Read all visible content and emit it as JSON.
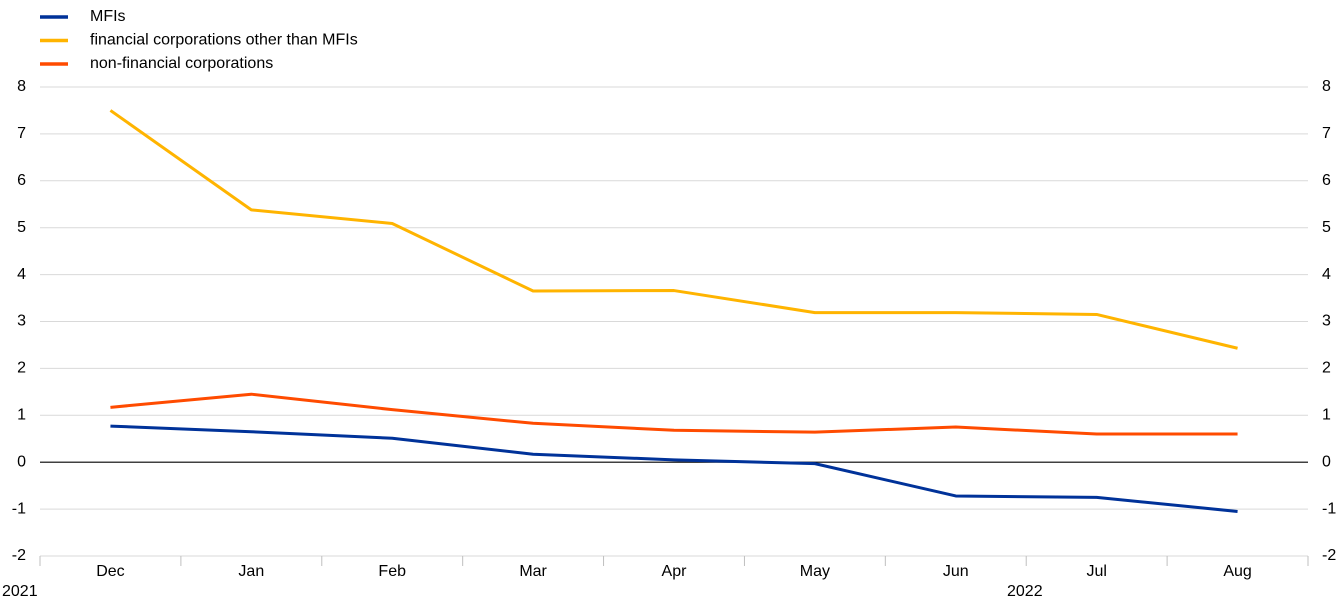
{
  "chart_data": {
    "type": "line",
    "categories": [
      "Dec",
      "Jan",
      "Feb",
      "Mar",
      "Apr",
      "May",
      "Jun",
      "Jul",
      "Aug"
    ],
    "year_labels": [
      "2021",
      "2022"
    ],
    "series": [
      {
        "name": "MFIs",
        "color": "#003299",
        "values": [
          0.77,
          0.65,
          0.51,
          0.17,
          0.05,
          -0.03,
          -0.72,
          -0.75,
          -1.05
        ]
      },
      {
        "name": "financial corporations other than MFIs",
        "color": "#ffb400",
        "values": [
          7.5,
          5.38,
          5.09,
          3.65,
          3.66,
          3.19,
          3.19,
          3.15,
          2.43
        ]
      },
      {
        "name": "non-financial corporations",
        "color": "#ff4b00",
        "values": [
          1.17,
          1.45,
          1.12,
          0.83,
          0.68,
          0.64,
          0.75,
          0.6,
          0.6
        ]
      }
    ],
    "ylim": [
      -2,
      8
    ],
    "yticks": [
      -2,
      -1,
      0,
      1,
      2,
      3,
      4,
      5,
      6,
      7,
      8
    ],
    "grid": true,
    "legend": "top-left"
  }
}
